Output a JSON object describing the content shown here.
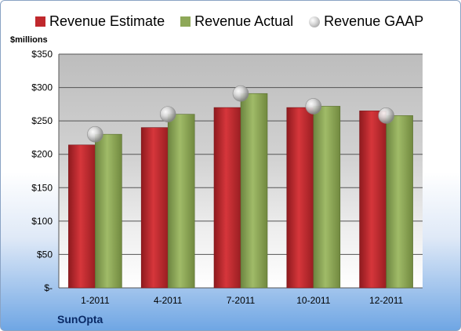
{
  "legend": {
    "estimate": "Revenue Estimate",
    "actual": "Revenue Actual",
    "gaap": "Revenue GAAP"
  },
  "ylabel": "$millions",
  "company": "SunOpta",
  "colors": {
    "estimate": "#c0282d",
    "actual": "#8ea858",
    "gaap": "#c8c8c8"
  },
  "chart_data": {
    "type": "bar",
    "categories": [
      "1-2011",
      "4-2011",
      "7-2011",
      "10-2011",
      "12-2011"
    ],
    "series": [
      {
        "name": "Revenue Estimate",
        "values": [
          214,
          240,
          270,
          270,
          265
        ]
      },
      {
        "name": "Revenue Actual",
        "values": [
          230,
          260,
          291,
          272,
          258
        ]
      },
      {
        "name": "Revenue GAAP",
        "values": [
          230,
          260,
          291,
          272,
          258
        ],
        "marker": "sphere"
      }
    ],
    "yticks": [
      "$-",
      "$50",
      "$100",
      "$150",
      "$200",
      "$250",
      "$300",
      "$350"
    ],
    "ytick_values": [
      0,
      50,
      100,
      150,
      200,
      250,
      300,
      350
    ],
    "ylim": [
      0,
      350
    ],
    "ylabel": "$millions",
    "legend_position": "top",
    "grid": true
  }
}
